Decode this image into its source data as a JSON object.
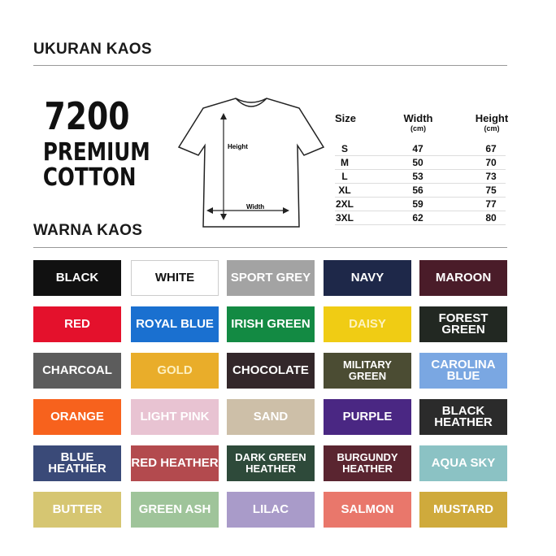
{
  "size_section": {
    "title": "UKURAN KAOS"
  },
  "product": {
    "line1": "7200",
    "line2": "PREMIUM",
    "line3": "COTTON"
  },
  "diagram": {
    "height_label": "Height",
    "width_label": "Width"
  },
  "size_table": {
    "headers": {
      "size": "Size",
      "width": "Width",
      "width_unit": "(cm)",
      "height": "Height",
      "height_unit": "(cm)"
    },
    "rows": [
      {
        "size": "S",
        "width": "47",
        "height": "67"
      },
      {
        "size": "M",
        "width": "50",
        "height": "70"
      },
      {
        "size": "L",
        "width": "53",
        "height": "73"
      },
      {
        "size": "XL",
        "width": "56",
        "height": "75"
      },
      {
        "size": "2XL",
        "width": "59",
        "height": "77"
      },
      {
        "size": "3XL",
        "width": "62",
        "height": "80"
      }
    ]
  },
  "color_section": {
    "title": "WARNA KAOS"
  },
  "colors": [
    {
      "name": "BLACK",
      "color": "#111111",
      "text": "#ffffff"
    },
    {
      "name": "WHITE",
      "color": "#ffffff",
      "text": "#111111"
    },
    {
      "name": "SPORT GREY",
      "color": "#a3a3a3",
      "text": "#ffffff"
    },
    {
      "name": "NAVY",
      "color": "#1e2849",
      "text": "#ffffff"
    },
    {
      "name": "MAROON",
      "color": "#4a1c29",
      "text": "#ffffff"
    },
    {
      "name": "RED",
      "color": "#e4112c",
      "text": "#ffffff"
    },
    {
      "name": "ROYAL BLUE",
      "color": "#1a70d0",
      "text": "#ffffff"
    },
    {
      "name": "IRISH GREEN",
      "color": "#138a43",
      "text": "#ffffff"
    },
    {
      "name": "DAISY",
      "color": "#f0cc14",
      "text": "#fdf3c0"
    },
    {
      "name": "FOREST GREEN",
      "color": "#222822",
      "text": "#ffffff"
    },
    {
      "name": "CHARCOAL",
      "color": "#5c5c5c",
      "text": "#ffffff"
    },
    {
      "name": "GOLD",
      "color": "#e9ad2a",
      "text": "#fdf0c0"
    },
    {
      "name": "CHOCOLATE",
      "color": "#33272a",
      "text": "#ffffff"
    },
    {
      "name": "MILITARY GREEN",
      "color": "#4b4c33",
      "text": "#ffffff"
    },
    {
      "name": "CAROLINA BLUE",
      "color": "#7aa7e2",
      "text": "#ffffff"
    },
    {
      "name": "ORANGE",
      "color": "#f7621d",
      "text": "#ffffff"
    },
    {
      "name": "LIGHT PINK",
      "color": "#e8c3d2",
      "text": "#ffffff"
    },
    {
      "name": "SAND",
      "color": "#cdbfa8",
      "text": "#ffffff"
    },
    {
      "name": "PURPLE",
      "color": "#4a2783",
      "text": "#ffffff"
    },
    {
      "name": "BLACK HEATHER",
      "color": "#2b2b2b",
      "text": "#ffffff"
    },
    {
      "name": "BLUE HEATHER",
      "color": "#3a4a78",
      "text": "#ffffff"
    },
    {
      "name": "RED HEATHER",
      "color": "#b34a4e",
      "text": "#ffffff"
    },
    {
      "name": "DARK GREEN HEATHER",
      "color": "#2e4a3a",
      "text": "#ffffff"
    },
    {
      "name": "BURGUNDY HEATHER",
      "color": "#5a2530",
      "text": "#ffffff"
    },
    {
      "name": "AQUA SKY",
      "color": "#8bc2c4",
      "text": "#ffffff"
    },
    {
      "name": "BUTTER",
      "color": "#d6c672",
      "text": "#ffffff"
    },
    {
      "name": "GREEN ASH",
      "color": "#9fc49a",
      "text": "#ffffff"
    },
    {
      "name": "LILAC",
      "color": "#a99bc9",
      "text": "#ffffff"
    },
    {
      "name": "SALMON",
      "color": "#e9776b",
      "text": "#ffffff"
    },
    {
      "name": "MUSTARD",
      "color": "#cfaa3c",
      "text": "#ffffff"
    }
  ]
}
